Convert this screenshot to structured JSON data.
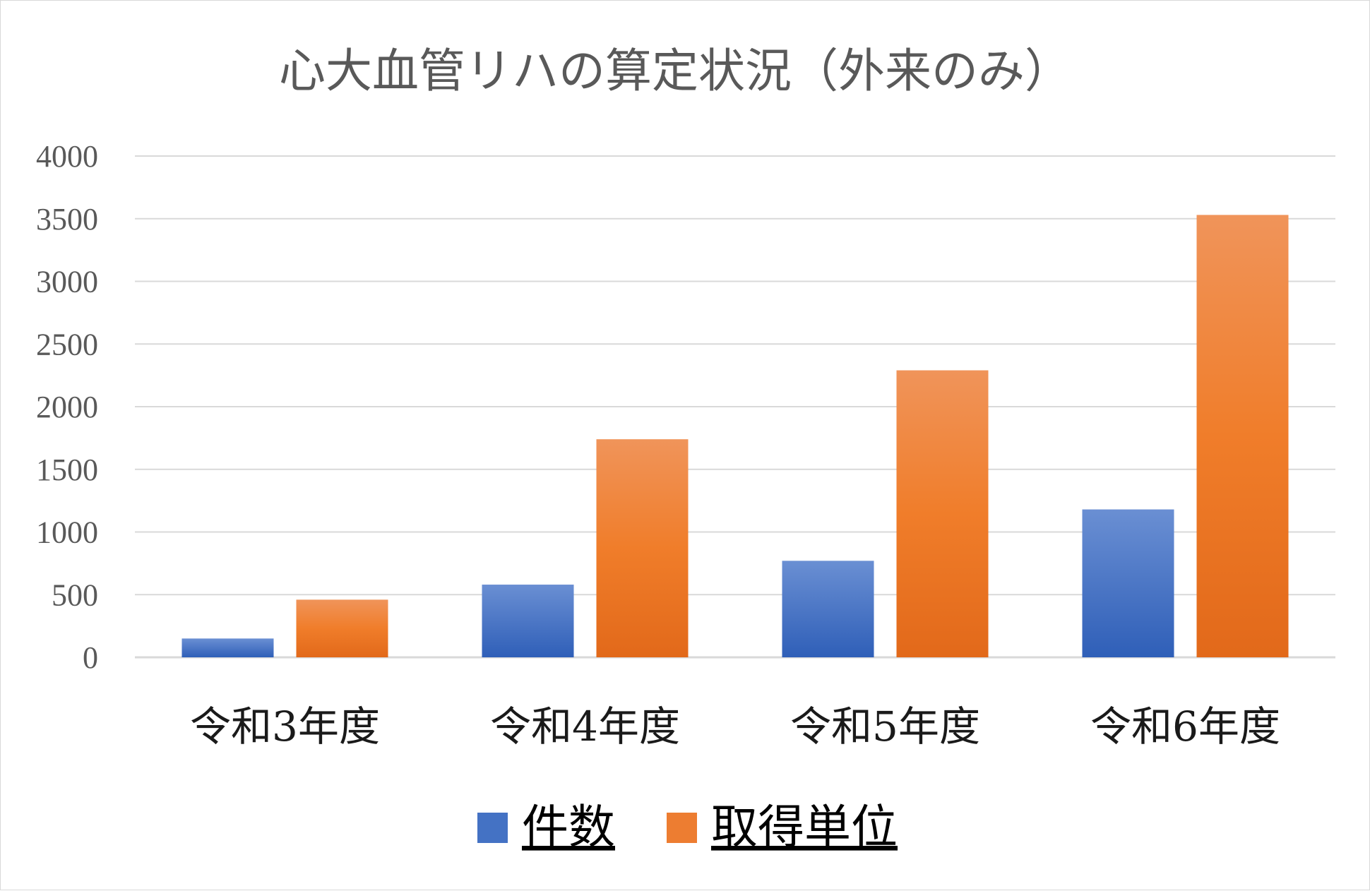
{
  "chart_data": {
    "type": "bar",
    "title": "心大血管リハの算定状況（外来のみ）",
    "categories": [
      "令和3年度",
      "令和4年度",
      "令和5年度",
      "令和6年度"
    ],
    "series": [
      {
        "name": "件数",
        "values": [
          150,
          580,
          770,
          1180
        ],
        "color": "#4472c4"
      },
      {
        "name": "取得単位",
        "values": [
          460,
          1740,
          2290,
          3530
        ],
        "color": "#ed7d31"
      }
    ],
    "ylim": [
      0,
      4000
    ],
    "yticks": [
      0,
      500,
      1000,
      1500,
      2000,
      2500,
      3000,
      3500,
      4000
    ],
    "grid": true,
    "legend": "bottom",
    "xlabel": "",
    "ylabel": ""
  }
}
